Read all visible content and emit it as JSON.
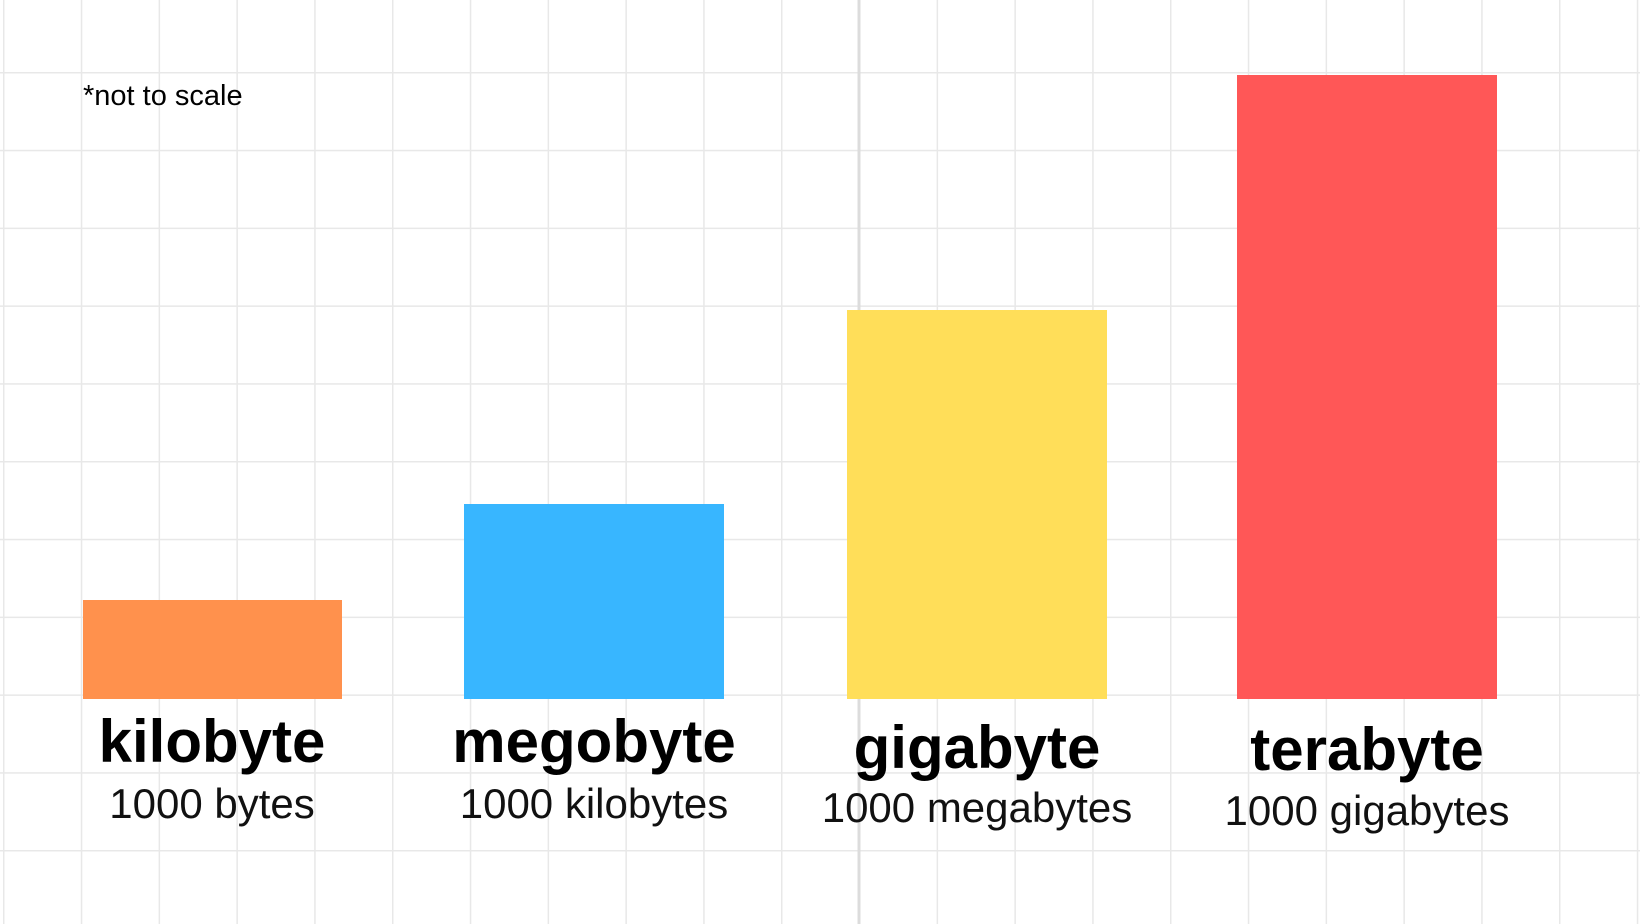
{
  "note": "*not to scale",
  "items": [
    {
      "name": "kilobyte",
      "description": "1000 bytes"
    },
    {
      "name": "megobyte",
      "description": "1000 kilobytes"
    },
    {
      "name": "gigabyte",
      "description": "1000 megabytes"
    },
    {
      "name": "terabyte",
      "description": "1000 gigabytes"
    }
  ]
}
